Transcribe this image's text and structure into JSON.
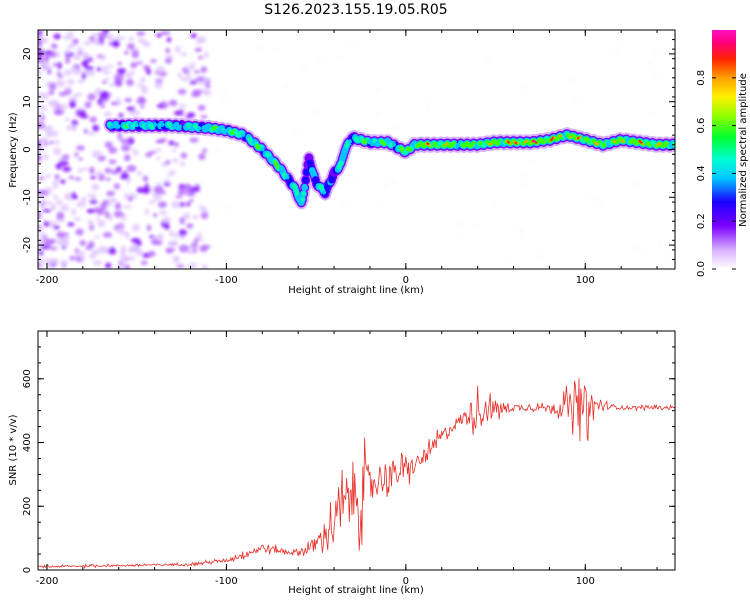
{
  "title": "S126.2023.155.19.05.R05",
  "chart_data": [
    {
      "type": "heatmap",
      "xlabel": "Height of straight line (km)",
      "ylabel": "Frequency (Hz)",
      "xlim": [
        -205,
        150
      ],
      "ylim": [
        -25,
        25
      ],
      "xticks": [
        -200,
        -100,
        0,
        100
      ],
      "yticks": [
        -20,
        -10,
        0,
        10,
        20
      ],
      "colorbar": {
        "label": "Normalized spectral amplitude",
        "range": [
          0,
          1
        ],
        "ticks": [
          "0.0",
          "0.2",
          "0.4",
          "0.6",
          "0.8"
        ],
        "colormap": "gist_ncar-like (white, violet, blue, cyan, green, yellow, orange, red, magenta)"
      },
      "ridge": {
        "x": [
          -165,
          -150,
          -130,
          -110,
          -100,
          -90,
          -80,
          -70,
          -62,
          -58,
          -54,
          -50,
          -45,
          -40,
          -36,
          -34,
          -30,
          -25,
          -20,
          -15,
          -10,
          -5,
          0,
          5,
          10,
          20,
          30,
          40,
          50,
          60,
          70,
          80,
          90,
          100,
          110,
          120,
          130,
          140,
          150
        ],
        "y": [
          5,
          5,
          5,
          4.5,
          4,
          3,
          0,
          -4,
          -8,
          -11.5,
          -2,
          -7,
          -9,
          -5,
          -3,
          0,
          2.5,
          2,
          1.5,
          1.5,
          1.5,
          0.5,
          -0.5,
          1,
          1,
          1,
          1,
          1,
          1.5,
          1.5,
          1.5,
          2,
          3,
          2,
          1,
          2,
          1.5,
          1,
          1
        ],
        "amp": [
          0.55,
          0.55,
          0.5,
          0.55,
          0.6,
          0.6,
          0.6,
          0.6,
          0.55,
          0.5,
          0.45,
          0.5,
          0.5,
          0.45,
          0.5,
          0.55,
          0.6,
          0.6,
          0.6,
          0.6,
          0.6,
          0.6,
          0.65,
          0.75,
          0.85,
          0.8,
          0.7,
          0.75,
          0.8,
          0.9,
          0.95,
          0.9,
          0.85,
          0.85,
          0.75,
          0.8,
          0.85,
          0.8,
          0.75
        ]
      },
      "noise_region_x": [
        -205,
        -110
      ]
    },
    {
      "type": "line",
      "xlabel": "Height of straight line (km)",
      "ylabel": "SNR (10 * v/v)",
      "xlim": [
        -205,
        150
      ],
      "ylim": [
        0,
        750
      ],
      "xticks": [
        -200,
        -100,
        0,
        100
      ],
      "yticks": [
        0,
        200,
        400,
        600
      ],
      "color": "#e8302a",
      "envelope": {
        "x": [
          -205,
          -150,
          -120,
          -100,
          -90,
          -80,
          -70,
          -60,
          -50,
          -40,
          -30,
          -25,
          -20,
          -10,
          0,
          10,
          20,
          30,
          40,
          50,
          60,
          80,
          100,
          110,
          120,
          150
        ],
        "mean": [
          10,
          15,
          18,
          30,
          50,
          70,
          60,
          55,
          80,
          150,
          240,
          250,
          270,
          300,
          310,
          350,
          420,
          470,
          500,
          505,
          510,
          510,
          510,
          515,
          510,
          510
        ],
        "spread": [
          5,
          6,
          6,
          10,
          20,
          25,
          15,
          20,
          40,
          110,
          180,
          190,
          110,
          80,
          60,
          40,
          40,
          30,
          90,
          50,
          20,
          15,
          130,
          20,
          10,
          8
        ]
      }
    }
  ]
}
